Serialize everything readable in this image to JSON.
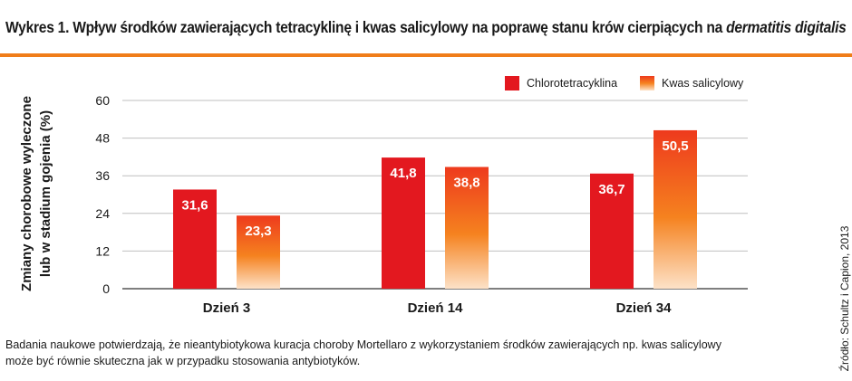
{
  "header": {
    "title_main": "Wykres 1. Wpływ środków zawierających tetracyklinę i kwas salicylowy na poprawę stanu krów cierpiących na ",
    "title_italic": "dermatitis digitalis"
  },
  "footer": {
    "note_line1": "Badania naukowe potwierdzają, że nieantybiotykowa kuracja choroby Mortellaro z wykorzystaniem środków zawierających np. kwas salicylowy",
    "note_line2": "może być równie skuteczna jak w przypadku stosowania antybiotyków.",
    "source": "Źródło: Schultz i Capion, 2013"
  },
  "chart_data": {
    "type": "bar",
    "ylabel_line1": "Zmiany chorobowe wyleczone",
    "ylabel_line2": "lub w stadium gojenia (%)",
    "categories": [
      "Dzień 3",
      "Dzień 14",
      "Dzień 34"
    ],
    "series": [
      {
        "name": "Chlorotetracyklina",
        "values": [
          31.6,
          41.8,
          36.7
        ],
        "labels": [
          "31,6",
          "41,8",
          "36,7"
        ],
        "color": "#e3181f"
      },
      {
        "name": "Kwas salicylowy",
        "values": [
          23.3,
          38.8,
          50.5
        ],
        "labels": [
          "23,3",
          "38,8",
          "50,5"
        ],
        "color_top": "#ee3a1d",
        "color_mid": "#f5821f",
        "color_bottom": "#fde2c8"
      }
    ],
    "ylim": [
      0,
      60
    ],
    "yticks": [
      0,
      12,
      24,
      36,
      48,
      60
    ],
    "grid": true,
    "legend_position": "top-right"
  }
}
